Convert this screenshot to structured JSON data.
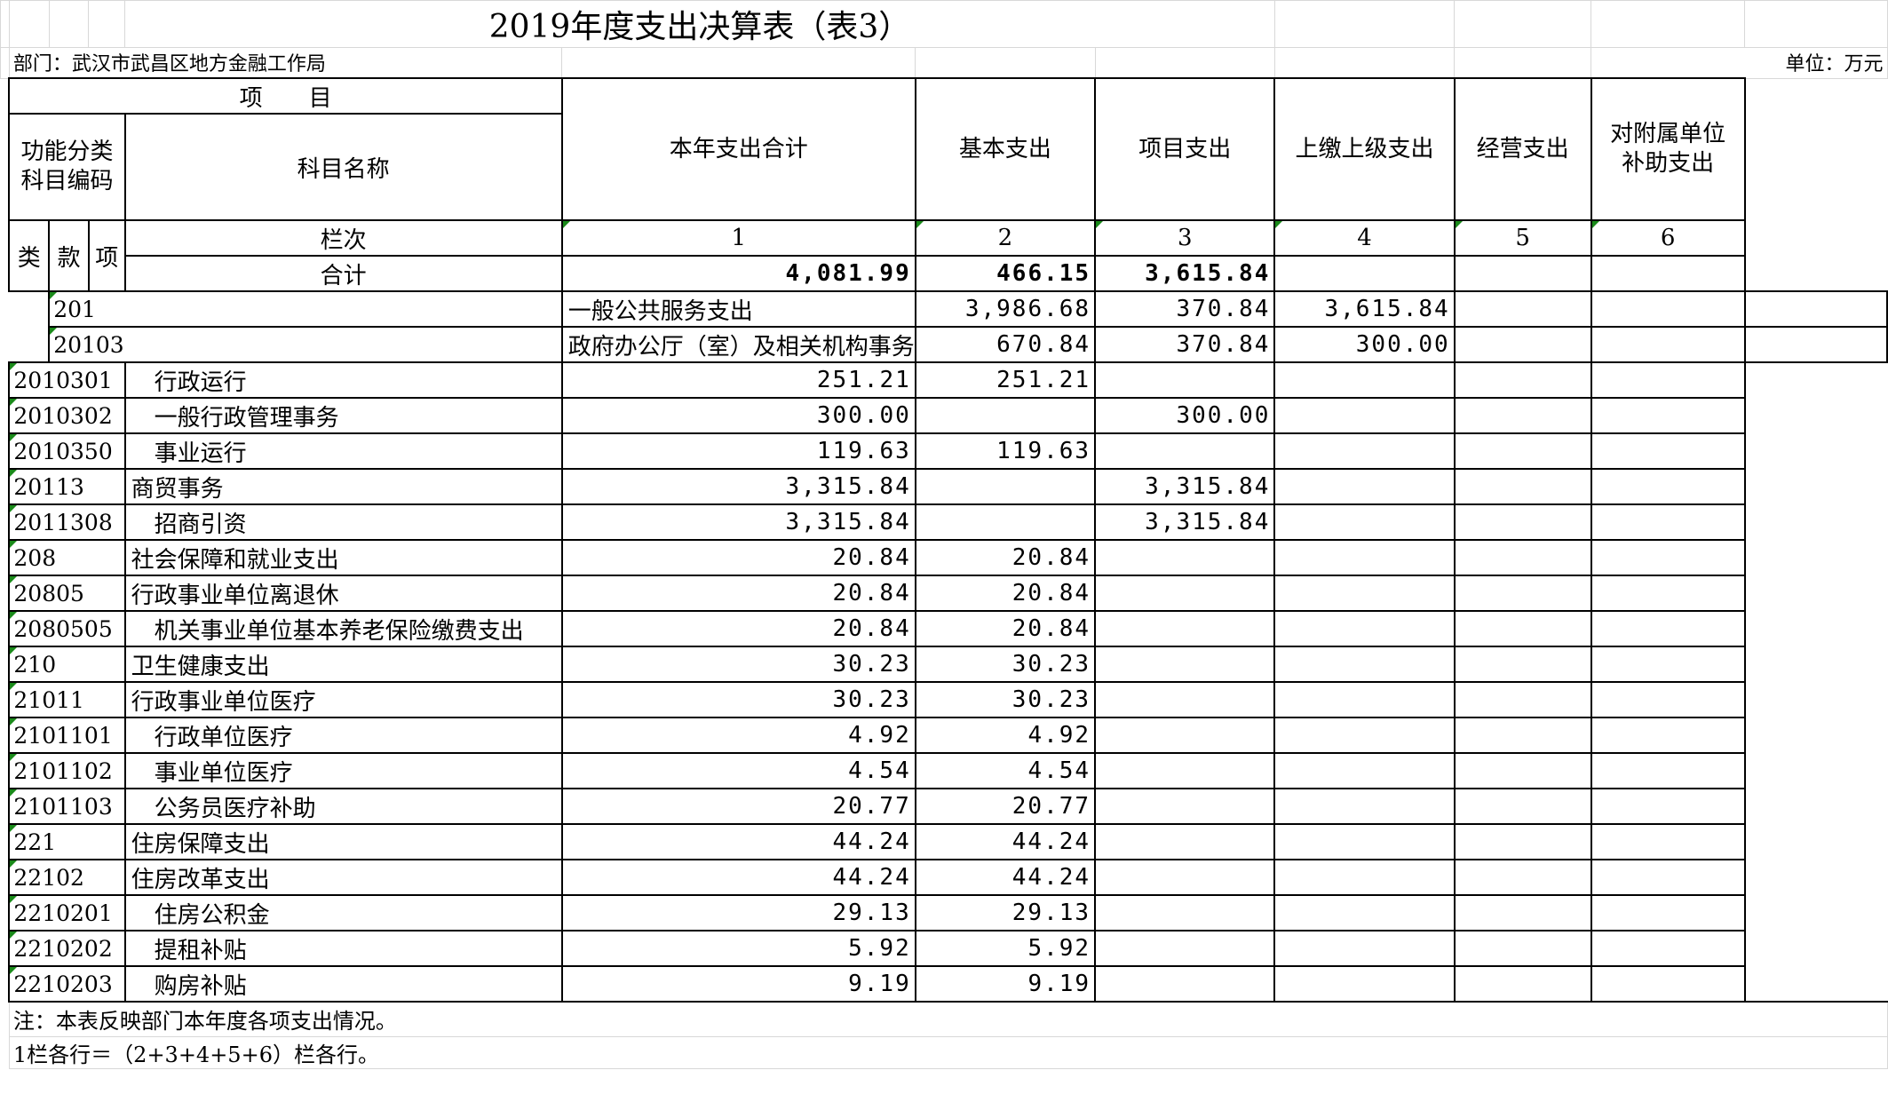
{
  "title": "2019年度支出决算表（表3）",
  "department": "部门：武汉市武昌区地方金融工作局",
  "unit": "单位：万元",
  "headers": {
    "item_group": "项　　目",
    "func_code": "功能分类科目编码",
    "subject_name": "科目名称",
    "col_total": "本年支出合计",
    "col_basic": "基本支出",
    "col_project": "项目支出",
    "col_upper": "上缴上级支出",
    "col_business": "经营支出",
    "col_subsidy": "对附属单位补助支出",
    "lei": "类",
    "kuan": "款",
    "xiang": "项",
    "lanci": "栏次",
    "heji": "合计",
    "index": [
      "1",
      "2",
      "3",
      "4",
      "5",
      "6"
    ]
  },
  "totals": [
    "4,081.99",
    "466.15",
    "3,615.84",
    "",
    "",
    ""
  ],
  "rows": [
    {
      "code": "201",
      "name": "一般公共服务支出",
      "level": 0,
      "values": [
        "3,986.68",
        "370.84",
        "3,615.84",
        "",
        "",
        ""
      ]
    },
    {
      "code": "20103",
      "name": "政府办公厅（室）及相关机构事务",
      "level": 0,
      "values": [
        "670.84",
        "370.84",
        "300.00",
        "",
        "",
        ""
      ]
    },
    {
      "code": "2010301",
      "name": "行政运行",
      "level": 1,
      "values": [
        "251.21",
        "251.21",
        "",
        "",
        "",
        ""
      ]
    },
    {
      "code": "2010302",
      "name": "一般行政管理事务",
      "level": 1,
      "values": [
        "300.00",
        "",
        "300.00",
        "",
        "",
        ""
      ]
    },
    {
      "code": "2010350",
      "name": "事业运行",
      "level": 1,
      "values": [
        "119.63",
        "119.63",
        "",
        "",
        "",
        ""
      ]
    },
    {
      "code": "20113",
      "name": "商贸事务",
      "level": 0,
      "values": [
        "3,315.84",
        "",
        "3,315.84",
        "",
        "",
        ""
      ]
    },
    {
      "code": "2011308",
      "name": "招商引资",
      "level": 1,
      "values": [
        "3,315.84",
        "",
        "3,315.84",
        "",
        "",
        ""
      ]
    },
    {
      "code": "208",
      "name": "社会保障和就业支出",
      "level": 0,
      "values": [
        "20.84",
        "20.84",
        "",
        "",
        "",
        ""
      ]
    },
    {
      "code": "20805",
      "name": "行政事业单位离退休",
      "level": 0,
      "values": [
        "20.84",
        "20.84",
        "",
        "",
        "",
        ""
      ]
    },
    {
      "code": "2080505",
      "name": "机关事业单位基本养老保险缴费支出",
      "level": 1,
      "values": [
        "20.84",
        "20.84",
        "",
        "",
        "",
        ""
      ]
    },
    {
      "code": "210",
      "name": "卫生健康支出",
      "level": 0,
      "values": [
        "30.23",
        "30.23",
        "",
        "",
        "",
        ""
      ]
    },
    {
      "code": "21011",
      "name": "行政事业单位医疗",
      "level": 0,
      "values": [
        "30.23",
        "30.23",
        "",
        "",
        "",
        ""
      ]
    },
    {
      "code": "2101101",
      "name": "行政单位医疗",
      "level": 1,
      "values": [
        "4.92",
        "4.92",
        "",
        "",
        "",
        ""
      ]
    },
    {
      "code": "2101102",
      "name": "事业单位医疗",
      "level": 1,
      "values": [
        "4.54",
        "4.54",
        "",
        "",
        "",
        ""
      ]
    },
    {
      "code": "2101103",
      "name": "公务员医疗补助",
      "level": 1,
      "values": [
        "20.77",
        "20.77",
        "",
        "",
        "",
        ""
      ]
    },
    {
      "code": "221",
      "name": "住房保障支出",
      "level": 0,
      "values": [
        "44.24",
        "44.24",
        "",
        "",
        "",
        ""
      ]
    },
    {
      "code": "22102",
      "name": "住房改革支出",
      "level": 0,
      "values": [
        "44.24",
        "44.24",
        "",
        "",
        "",
        ""
      ]
    },
    {
      "code": "2210201",
      "name": "住房公积金",
      "level": 1,
      "values": [
        "29.13",
        "29.13",
        "",
        "",
        "",
        ""
      ]
    },
    {
      "code": "2210202",
      "name": "提租补贴",
      "level": 1,
      "values": [
        "5.92",
        "5.92",
        "",
        "",
        "",
        ""
      ]
    },
    {
      "code": "2210203",
      "name": "购房补贴",
      "level": 1,
      "values": [
        "9.19",
        "9.19",
        "",
        "",
        "",
        ""
      ]
    }
  ],
  "notes": [
    "注：本表反映部门本年度各项支出情况。",
    "1栏各行＝（2+3+4+5+6）栏各行。"
  ]
}
